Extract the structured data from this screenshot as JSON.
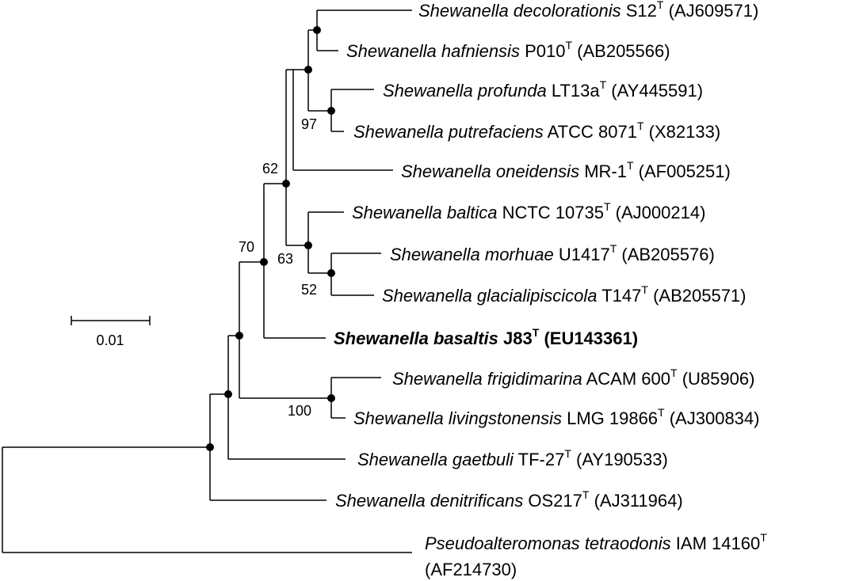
{
  "taxa": [
    {
      "genus": "Shewanella",
      "species": "decolorationis",
      "strain": "S12",
      "type_marker": "T",
      "accession": "(AJ609571)",
      "bold": false
    },
    {
      "genus": "Shewanella",
      "species": "hafniensis",
      "strain": "P010",
      "type_marker": "T",
      "accession": "(AB205566)",
      "bold": false
    },
    {
      "genus": "Shewanella",
      "species": "profunda",
      "strain": "LT13a",
      "type_marker": "T",
      "accession": "(AY445591)",
      "bold": false
    },
    {
      "genus": "Shewanella",
      "species": "putrefaciens",
      "strain": "ATCC 8071",
      "type_marker": "T",
      "accession": "(X82133)",
      "bold": false
    },
    {
      "genus": "Shewanella",
      "species": "oneidensis",
      "strain": "MR-1",
      "type_marker": "T",
      "accession": "(AF005251)",
      "bold": false
    },
    {
      "genus": "Shewanella",
      "species": "baltica",
      "strain": "NCTC 10735",
      "type_marker": "T",
      "accession": "(AJ000214)",
      "bold": false
    },
    {
      "genus": "Shewanella",
      "species": "morhuae",
      "strain": "U1417",
      "type_marker": "T",
      "accession": "(AB205576)",
      "bold": false
    },
    {
      "genus": "Shewanella",
      "species": "glacialipiscicola",
      "strain": "T147",
      "type_marker": "T",
      "accession": "(AB205571)",
      "bold": false
    },
    {
      "genus": "Shewanella",
      "species": "basaltis",
      "strain": "J83",
      "type_marker": "T",
      "accession": "(EU143361)",
      "bold": true
    },
    {
      "genus": "Shewanella",
      "species": "frigidimarina",
      "strain": "ACAM 600",
      "type_marker": "T",
      "accession": "(U85906)",
      "bold": false
    },
    {
      "genus": "Shewanella",
      "species": "livingstonensis",
      "strain": "LMG 19866",
      "type_marker": "T",
      "accession": "(AJ300834)",
      "bold": false
    },
    {
      "genus": "Shewanella",
      "species": "gaetbuli",
      "strain": "TF-27",
      "type_marker": "T",
      "accession": "(AY190533)",
      "bold": false
    },
    {
      "genus": "Shewanella",
      "species": "denitrificans",
      "strain": "OS217",
      "type_marker": "T",
      "accession": "(AJ311964)",
      "bold": false
    },
    {
      "genus": "Pseudoalteromonas",
      "species": "tetraodonis",
      "strain": "IAM 14160",
      "type_marker": "T",
      "accession": "(AF214730)",
      "bold": false
    }
  ],
  "bootstrap": [
    "97",
    "62",
    "63",
    "52",
    "70",
    "100"
  ],
  "scale_bar": {
    "label": "0.01"
  }
}
